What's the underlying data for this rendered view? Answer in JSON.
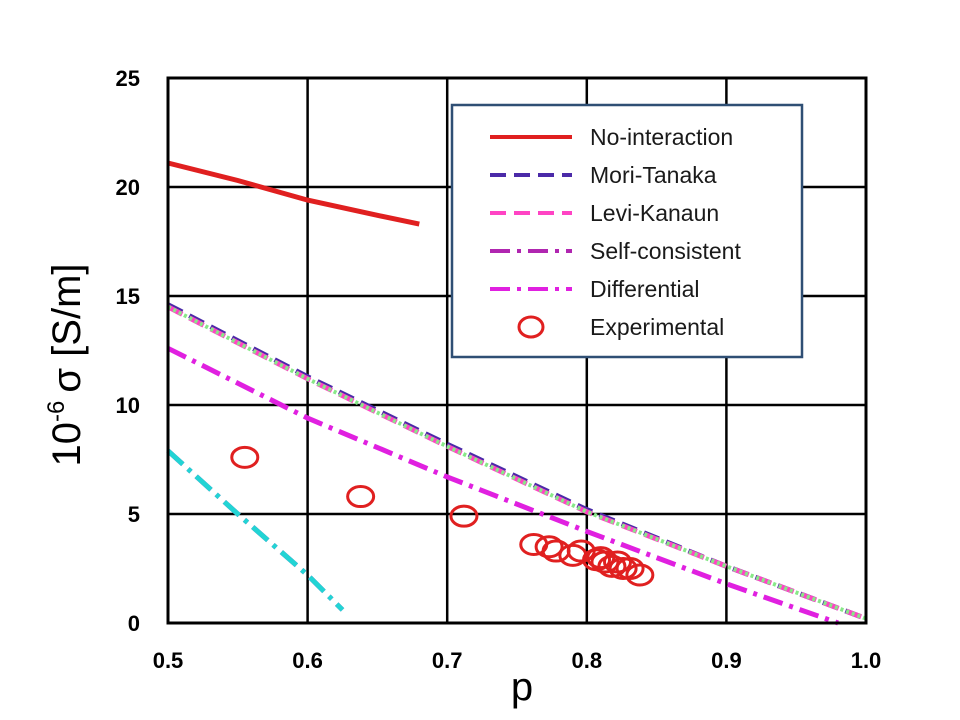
{
  "chart_data": {
    "type": "line",
    "xlabel": "p",
    "ylabel_prefix": "10",
    "ylabel_exp": "-6",
    "ylabel_rest": "σ [S/m]",
    "xlim": [
      0.5,
      1.0
    ],
    "ylim": [
      0,
      25
    ],
    "xticks": [
      0.5,
      0.6,
      0.7,
      0.8,
      0.9,
      1.0
    ],
    "xtick_labels": [
      "0.5",
      "0.6",
      "0.7",
      "0.8",
      "0.9",
      "1.0"
    ],
    "yticks": [
      0,
      5,
      10,
      15,
      20,
      25
    ],
    "ytick_labels": [
      "0",
      "5",
      "10",
      "15",
      "20",
      "25"
    ],
    "grid": true,
    "legend_position": "top-right",
    "series": [
      {
        "name": "No-interaction",
        "style": "solid",
        "color": "#e02020",
        "in_legend": true,
        "x": [
          0.5,
          0.55,
          0.6,
          0.65,
          0.68
        ],
        "y": [
          21.1,
          20.3,
          19.4,
          18.7,
          18.3
        ]
      },
      {
        "name": "Mori-Tanaka",
        "style": "dash",
        "color": "#4b2aa8",
        "in_legend": true,
        "x": [
          0.5,
          0.6,
          0.7,
          0.8,
          0.9,
          1.0
        ],
        "y": [
          14.6,
          11.3,
          8.2,
          5.2,
          2.6,
          0.2
        ]
      },
      {
        "name": "Levi-Kanaun",
        "style": "dash",
        "color": "#ff44c4",
        "in_legend": true,
        "x": [
          0.5,
          0.6,
          0.7,
          0.8,
          0.9,
          1.0
        ],
        "y": [
          14.5,
          11.2,
          8.1,
          5.1,
          2.6,
          0.2
        ]
      },
      {
        "name": "Self-consistent",
        "style": "dashdot",
        "color": "#b026b0",
        "in_legend": true,
        "x": [
          0.5,
          0.55,
          0.6,
          0.625
        ],
        "y": [
          7.9,
          5.0,
          2.2,
          0.6
        ]
      },
      {
        "name": "Differential",
        "style": "dashdot",
        "color": "#e020e0",
        "in_legend": true,
        "x": [
          0.5,
          0.6,
          0.7,
          0.8,
          0.9,
          0.98
        ],
        "y": [
          12.6,
          9.4,
          6.7,
          4.2,
          1.8,
          0.0
        ]
      },
      {
        "name": "",
        "style": "dashdot",
        "color": "#22d4d4",
        "in_legend": false,
        "x": [
          0.5,
          0.55,
          0.6,
          0.625
        ],
        "y": [
          7.9,
          5.0,
          2.2,
          0.6
        ]
      },
      {
        "name": "",
        "style": "dot",
        "color": "#88e888",
        "in_legend": false,
        "x": [
          0.5,
          0.6,
          0.7,
          0.8,
          0.9,
          1.0
        ],
        "y": [
          14.5,
          11.2,
          8.1,
          5.1,
          2.6,
          0.2
        ]
      }
    ],
    "experimental": {
      "name": "Experimental",
      "color": "#e02020",
      "x": [
        0.555,
        0.638,
        0.712,
        0.762,
        0.773,
        0.778,
        0.79,
        0.796,
        0.807,
        0.81,
        0.813,
        0.818,
        0.822,
        0.826,
        0.831,
        0.838
      ],
      "y": [
        7.6,
        5.8,
        4.9,
        3.6,
        3.5,
        3.3,
        3.1,
        3.3,
        2.9,
        3.0,
        2.8,
        2.6,
        2.8,
        2.5,
        2.5,
        2.2
      ]
    }
  }
}
